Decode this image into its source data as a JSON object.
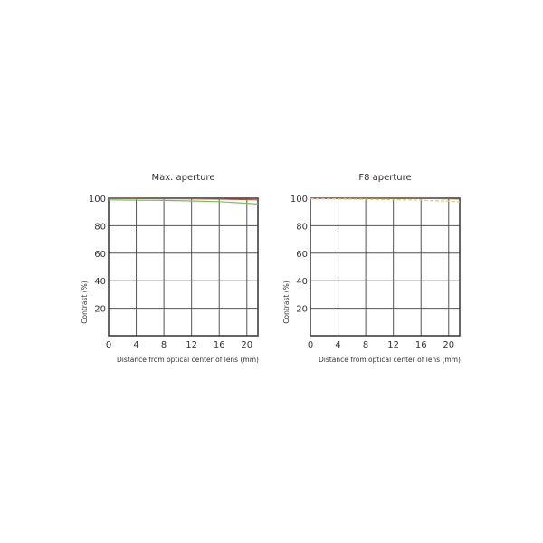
{
  "chart_data": [
    {
      "type": "line",
      "title": "Max. aperture",
      "xlabel": "Distance from optical center of lens (mm)",
      "ylabel": "Contrast (%)",
      "xlim": [
        0,
        21.6
      ],
      "ylim": [
        0,
        100
      ],
      "xticks": [
        0,
        4,
        8,
        12,
        16,
        20
      ],
      "yticks": [
        20,
        40,
        60,
        80,
        100
      ],
      "grid": true,
      "series": [
        {
          "color": "#b5533a",
          "style": "solid",
          "x": [
            0,
            4,
            8,
            12,
            16,
            20,
            21.6
          ],
          "y": [
            99.8,
            99.8,
            99.7,
            99.6,
            99.4,
            99.0,
            98.8
          ]
        },
        {
          "color": "#7cbf5a",
          "style": "solid",
          "x": [
            0,
            4,
            8,
            12,
            16,
            20,
            21.6
          ],
          "y": [
            98.8,
            98.6,
            98.4,
            98.0,
            97.5,
            96.3,
            95.8
          ]
        }
      ]
    },
    {
      "type": "line",
      "title": "F8 aperture",
      "xlabel": "Distance from optical center of lens (mm)",
      "ylabel": "Contrast (%)",
      "xlim": [
        0,
        21.6
      ],
      "ylim": [
        0,
        100
      ],
      "xticks": [
        0,
        4,
        8,
        12,
        16,
        20
      ],
      "yticks": [
        20,
        40,
        60,
        80,
        100
      ],
      "grid": true,
      "series": [
        {
          "color": "#b5533a",
          "style": "solid",
          "x": [
            0,
            4,
            8,
            12,
            16,
            20,
            21.6
          ],
          "y": [
            99.9,
            99.9,
            99.9,
            99.8,
            99.8,
            99.6,
            99.5
          ]
        },
        {
          "color": "#c9d47a",
          "style": "dashed",
          "x": [
            0,
            4,
            8,
            12,
            16,
            20,
            21.6
          ],
          "y": [
            99.6,
            99.5,
            99.3,
            99.0,
            98.6,
            97.8,
            97.3
          ]
        }
      ]
    }
  ]
}
